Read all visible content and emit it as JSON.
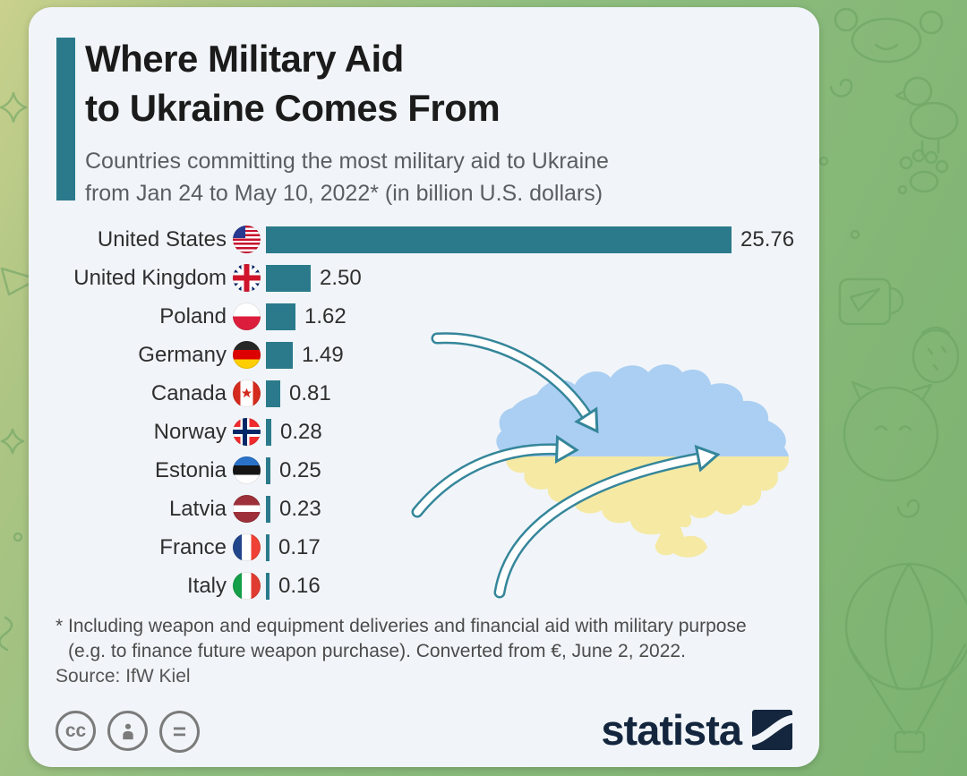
{
  "header": {
    "title_lines": "Where Military Aid\nto Ukraine Comes From",
    "subtitle_lines": "Countries committing the most military aid to Ukraine\nfrom Jan 24 to May 10, 2022* (in billion U.S. dollars)"
  },
  "chart_data": {
    "type": "bar",
    "orientation": "horizontal",
    "title": "Where Military Aid to Ukraine Comes From",
    "subtitle": "Countries committing the most military aid to Ukraine from Jan 24 to May 10, 2022* (in billion U.S. dollars)",
    "unit": "billion U.S. dollars",
    "categories": [
      "United States",
      "United Kingdom",
      "Poland",
      "Germany",
      "Canada",
      "Norway",
      "Estonia",
      "Latvia",
      "France",
      "Italy"
    ],
    "values": [
      25.76,
      2.5,
      1.62,
      1.49,
      0.81,
      0.28,
      0.25,
      0.23,
      0.17,
      0.16
    ],
    "value_labels": [
      "25.76",
      "2.50",
      "1.62",
      "1.49",
      "0.81",
      "0.28",
      "0.25",
      "0.23",
      "0.17",
      "0.16"
    ],
    "xlim": [
      0,
      25.76
    ],
    "bar_color": "#2b7a8b",
    "grid": false,
    "legend": false
  },
  "rows": [
    {
      "country": "United States",
      "flag": "us",
      "value": 25.76,
      "value_label": "25.76"
    },
    {
      "country": "United Kingdom",
      "flag": "uk",
      "value": 2.5,
      "value_label": "2.50"
    },
    {
      "country": "Poland",
      "flag": "pl",
      "value": 1.62,
      "value_label": "1.62"
    },
    {
      "country": "Germany",
      "flag": "de",
      "value": 1.49,
      "value_label": "1.49"
    },
    {
      "country": "Canada",
      "flag": "ca",
      "value": 0.81,
      "value_label": "0.81"
    },
    {
      "country": "Norway",
      "flag": "no",
      "value": 0.28,
      "value_label": "0.28"
    },
    {
      "country": "Estonia",
      "flag": "ee",
      "value": 0.25,
      "value_label": "0.25"
    },
    {
      "country": "Latvia",
      "flag": "lv",
      "value": 0.23,
      "value_label": "0.23"
    },
    {
      "country": "France",
      "flag": "fr",
      "value": 0.17,
      "value_label": "0.17"
    },
    {
      "country": "Italy",
      "flag": "it",
      "value": 0.16,
      "value_label": "0.16"
    }
  ],
  "footnote": {
    "line1": "* Including weapon and equipment deliveries and financial aid with military purpose",
    "line2": "(e.g. to finance future weapon purchase). Converted from €, June 2, 2022."
  },
  "source": "Source: IfW Kiel",
  "license": {
    "cc_label": "cc",
    "nd_label": "="
  },
  "branding": {
    "logo_text": "statista"
  },
  "colors": {
    "bar_teal": "#2b7a8b",
    "card_bg": "#f1f5f9",
    "statista_navy": "#14263e",
    "map_blue": "#abcff2",
    "map_yellow": "#f5e9a4",
    "arrow_teal": "#35869a",
    "wallpaper_green": "#89ba7c",
    "wallpaper_olive": "#c9d18d"
  }
}
